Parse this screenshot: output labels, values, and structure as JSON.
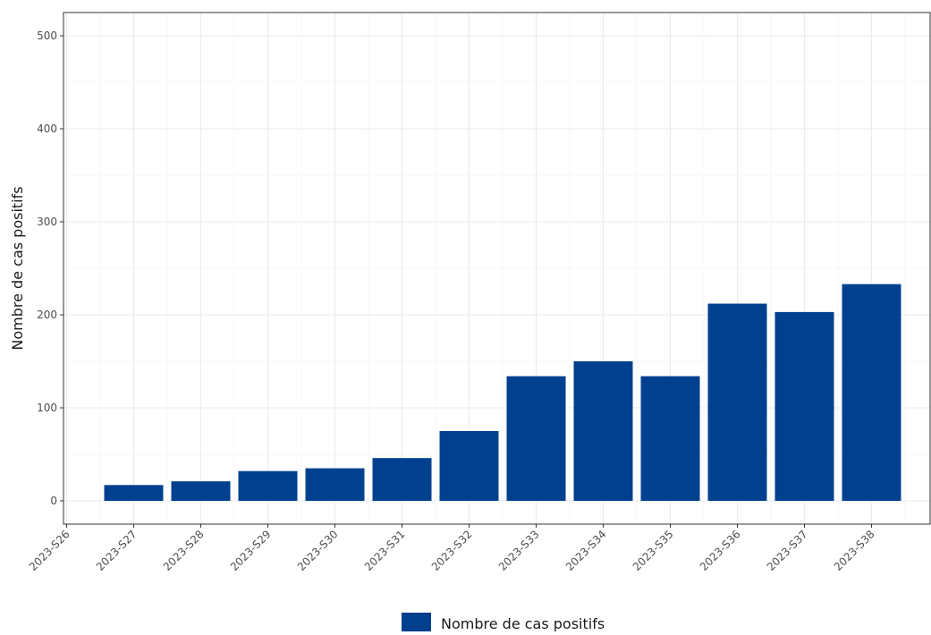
{
  "chart_data": {
    "type": "bar",
    "title": "",
    "xlabel": "",
    "ylabel": "Nombre de cas positifs",
    "categories": [
      "2023-S26",
      "2023-S27",
      "2023-S28",
      "2023-S29",
      "2023-S30",
      "2023-S31",
      "2023-S32",
      "2023-S33",
      "2023-S34",
      "2023-S35",
      "2023-S36",
      "2023-S37",
      "2023-S38"
    ],
    "series": [
      {
        "name": "Nombre de cas positifs",
        "color": "#00408f",
        "values": [
          null,
          17,
          21,
          32,
          35,
          46,
          75,
          134,
          150,
          134,
          212,
          203,
          233
        ]
      }
    ],
    "ylim": [
      0,
      510
    ],
    "yticks": [
      0,
      100,
      200,
      300,
      400,
      500
    ],
    "grid": true,
    "legend_position": "bottom"
  }
}
